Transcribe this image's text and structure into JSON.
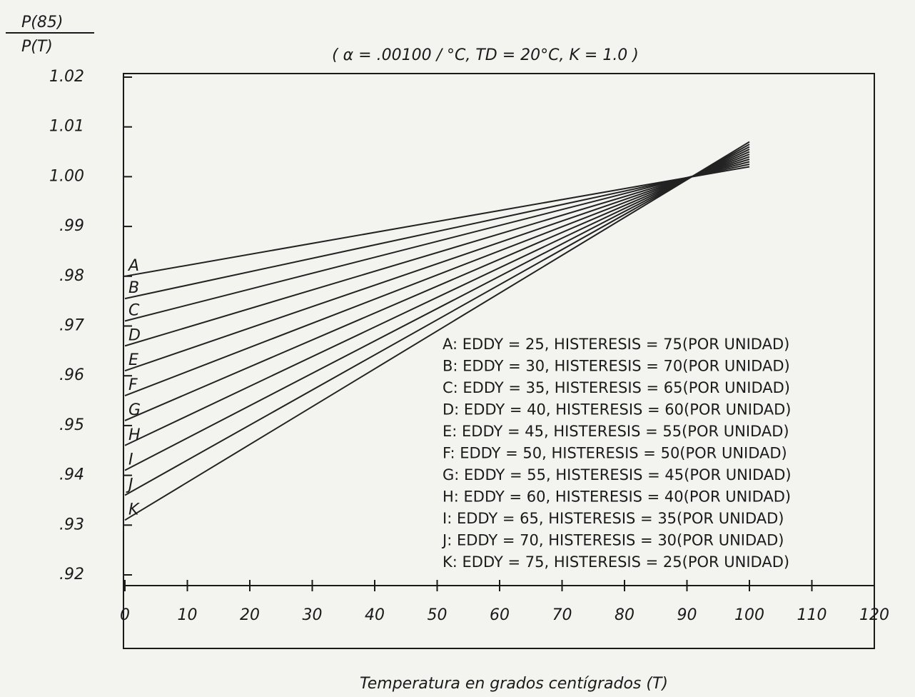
{
  "chart_data": {
    "type": "line",
    "title": "( α = .00100 / °C, TD = 20°C, K = 1.0 )",
    "y_label_top": "P(85)",
    "y_label_bottom": "P(T)",
    "x_label": "Temperatura en grados centígrados (T)",
    "x": [
      0,
      100
    ],
    "series": [
      {
        "name": "A",
        "color": "#222222",
        "values": [
          0.98,
          1.002
        ]
      },
      {
        "name": "B",
        "color": "#222222",
        "values": [
          0.9755,
          1.0025
        ]
      },
      {
        "name": "C",
        "color": "#222222",
        "values": [
          0.971,
          1.003
        ]
      },
      {
        "name": "D",
        "color": "#222222",
        "values": [
          0.966,
          1.0035
        ]
      },
      {
        "name": "E",
        "color": "#222222",
        "values": [
          0.961,
          1.004
        ]
      },
      {
        "name": "F",
        "color": "#222222",
        "values": [
          0.956,
          1.0045
        ]
      },
      {
        "name": "G",
        "color": "#222222",
        "values": [
          0.951,
          1.005
        ]
      },
      {
        "name": "H",
        "color": "#222222",
        "values": [
          0.946,
          1.0055
        ]
      },
      {
        "name": "I",
        "color": "#222222",
        "values": [
          0.941,
          1.006
        ]
      },
      {
        "name": "J",
        "color": "#222222",
        "values": [
          0.936,
          1.0065
        ]
      },
      {
        "name": "K",
        "color": "#222222",
        "values": [
          0.931,
          1.007
        ]
      }
    ],
    "annotations": [
      "A: EDDY = 25, HISTERESIS = 75(POR UNIDAD)",
      "B: EDDY = 30, HISTERESIS = 70(POR UNIDAD)",
      "C: EDDY = 35, HISTERESIS = 65(POR UNIDAD)",
      "D: EDDY = 40, HISTERESIS = 60(POR UNIDAD)",
      "E: EDDY = 45, HISTERESIS = 55(POR UNIDAD)",
      "F: EDDY = 50, HISTERESIS = 50(POR UNIDAD)",
      "G: EDDY = 55, HISTERESIS = 45(POR UNIDAD)",
      "H: EDDY = 60, HISTERESIS = 40(POR UNIDAD)",
      "I: EDDY = 65, HISTERESIS = 35(POR UNIDAD)",
      "J: EDDY = 70, HISTERESIS = 30(POR UNIDAD)",
      "K: EDDY = 75, HISTERESIS = 25(POR UNIDAD)"
    ],
    "xlim": [
      0,
      120
    ],
    "xticks": [
      0,
      10,
      20,
      30,
      40,
      50,
      60,
      70,
      80,
      90,
      100,
      110,
      120
    ],
    "ylim": [
      0.92,
      1.02
    ],
    "yticks": [
      {
        "value": 0.92,
        "label": ".92"
      },
      {
        "value": 0.93,
        "label": ".93"
      },
      {
        "value": 0.94,
        "label": ".94"
      },
      {
        "value": 0.95,
        "label": ".95"
      },
      {
        "value": 0.96,
        "label": ".96"
      },
      {
        "value": 0.97,
        "label": ".97"
      },
      {
        "value": 0.98,
        "label": ".98"
      },
      {
        "value": 0.99,
        "label": ".99"
      },
      {
        "value": 1.0,
        "label": "1.00"
      },
      {
        "value": 1.01,
        "label": "1.01"
      },
      {
        "value": 1.02,
        "label": "1.02"
      }
    ],
    "grid": false
  }
}
